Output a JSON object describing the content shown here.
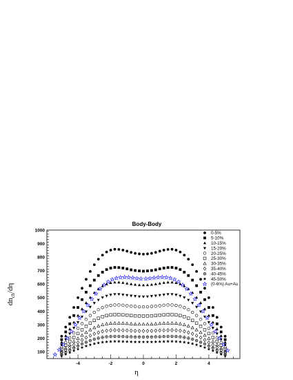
{
  "chart_data": {
    "type": "scatter",
    "title": "Body-Body",
    "xlabel": "η",
    "ylabel_main": "dn",
    "ylabel_sub": "ch",
    "ylabel_tail": "/dη",
    "xlim": [
      -5.9,
      5.9
    ],
    "ylim": [
      50,
      1000
    ],
    "xticks": [
      -4,
      -2,
      0,
      2,
      4
    ],
    "yticks": [
      100,
      200,
      300,
      400,
      500,
      600,
      700,
      800,
      900,
      1000
    ],
    "legend_position": "top-right",
    "grid": false,
    "x": [
      -5.0,
      -4.75,
      -4.5,
      -4.25,
      -4.0,
      -3.75,
      -3.5,
      -3.25,
      -3.0,
      -2.75,
      -2.5,
      -2.25,
      -2.0,
      -1.75,
      -1.5,
      -1.25,
      -1.0,
      -0.75,
      -0.5,
      -0.25,
      0.0,
      0.25,
      0.5,
      0.75,
      1.0,
      1.25,
      1.5,
      1.75,
      2.0,
      2.25,
      2.5,
      2.75,
      3.0,
      3.25,
      3.5,
      3.75,
      4.0,
      4.25,
      4.5,
      4.75,
      5.0
    ],
    "series": [
      {
        "name": "0-5%",
        "marker": "circle-filled",
        "values": [
          215,
          283,
          355,
          428,
          500,
          570,
          636,
          694,
          744,
          785,
          815,
          838,
          852,
          858,
          857,
          852,
          844,
          835,
          828,
          824,
          822,
          824,
          828,
          835,
          844,
          852,
          857,
          858,
          852,
          838,
          815,
          785,
          744,
          694,
          636,
          570,
          500,
          428,
          355,
          283,
          215
        ]
      },
      {
        "name": "5-10%",
        "marker": "square-filled",
        "values": [
          190,
          247,
          307,
          368,
          428,
          486,
          541,
          589,
          630,
          664,
          689,
          708,
          719,
          724,
          723,
          719,
          713,
          706,
          701,
          698,
          696,
          698,
          701,
          706,
          713,
          719,
          723,
          724,
          719,
          708,
          689,
          664,
          630,
          589,
          541,
          486,
          428,
          368,
          307,
          247,
          190
        ]
      },
      {
        "name": "10-15%",
        "marker": "triangle-up-filled",
        "values": [
          170,
          218,
          268,
          318,
          368,
          417,
          462,
          502,
          537,
          565,
          586,
          601,
          610,
          614,
          614,
          611,
          606,
          601,
          597,
          594,
          593,
          594,
          597,
          601,
          606,
          611,
          614,
          614,
          610,
          601,
          586,
          565,
          537,
          502,
          462,
          417,
          368,
          318,
          268,
          218,
          170
        ]
      },
      {
        "name": "15-20%",
        "marker": "triangle-down-filled",
        "values": [
          150,
          191,
          234,
          276,
          318,
          359,
          397,
          431,
          460,
          483,
          501,
          513,
          521,
          525,
          525,
          522,
          518,
          514,
          511,
          508,
          507,
          508,
          511,
          514,
          518,
          522,
          525,
          525,
          521,
          513,
          501,
          483,
          460,
          431,
          397,
          359,
          318,
          276,
          234,
          191,
          150
        ]
      },
      {
        "name": "20-25%",
        "marker": "circle-open",
        "values": [
          135,
          169,
          204,
          239,
          274,
          308,
          340,
          368,
          392,
          412,
          427,
          437,
          443,
          446,
          446,
          444,
          441,
          437,
          435,
          433,
          432,
          433,
          435,
          437,
          441,
          444,
          446,
          446,
          443,
          437,
          427,
          412,
          392,
          368,
          340,
          308,
          274,
          239,
          204,
          169,
          135
        ]
      },
      {
        "name": "25-30%",
        "marker": "square-open",
        "values": [
          120,
          148,
          177,
          206,
          235,
          263,
          289,
          312,
          332,
          348,
          360,
          368,
          373,
          375,
          375,
          373,
          371,
          368,
          366,
          365,
          364,
          365,
          366,
          368,
          371,
          373,
          375,
          375,
          373,
          368,
          360,
          348,
          332,
          312,
          289,
          263,
          235,
          206,
          177,
          148,
          120
        ]
      },
      {
        "name": "30-35%",
        "marker": "triangle-up-open",
        "values": [
          105,
          128,
          152,
          176,
          199,
          222,
          243,
          262,
          278,
          291,
          300,
          307,
          310,
          312,
          312,
          311,
          309,
          307,
          305,
          304,
          304,
          304,
          305,
          307,
          309,
          311,
          312,
          312,
          310,
          307,
          300,
          291,
          278,
          262,
          243,
          222,
          199,
          176,
          152,
          128,
          105
        ]
      },
      {
        "name": "35-40%",
        "marker": "diamond-open",
        "values": [
          92,
          112,
          131,
          150,
          169,
          188,
          205,
          220,
          233,
          243,
          251,
          256,
          259,
          260,
          260,
          259,
          258,
          256,
          255,
          254,
          254,
          254,
          255,
          256,
          258,
          259,
          260,
          260,
          259,
          256,
          251,
          243,
          233,
          220,
          205,
          188,
          169,
          150,
          131,
          112,
          92
        ]
      },
      {
        "name": "40-45%",
        "marker": "cross-circle-open",
        "values": [
          80,
          96,
          112,
          128,
          143,
          158,
          171,
          183,
          193,
          201,
          207,
          211,
          213,
          214,
          214,
          213,
          212,
          211,
          210,
          210,
          209,
          210,
          210,
          211,
          212,
          213,
          214,
          214,
          213,
          211,
          207,
          201,
          193,
          183,
          171,
          158,
          143,
          128,
          112,
          96,
          80
        ]
      },
      {
        "name": "45-50%",
        "marker": "star-filled",
        "values": [
          70,
          82,
          95,
          108,
          120,
          132,
          143,
          152,
          160,
          166,
          171,
          174,
          176,
          177,
          177,
          176,
          175,
          174,
          173,
          173,
          173,
          173,
          173,
          174,
          175,
          176,
          177,
          177,
          176,
          174,
          171,
          166,
          160,
          152,
          143,
          132,
          120,
          108,
          95,
          82,
          70
        ]
      },
      {
        "name": "(0-6%) Au+Au",
        "marker": "star-open",
        "color": "#1a1aff",
        "x": [
          -5.4,
          -5.15,
          -4.9,
          -4.65,
          -4.4,
          -4.15,
          -3.9,
          -3.65,
          -3.4,
          -3.15,
          -2.9,
          -2.65,
          -2.4,
          -2.15,
          -1.9,
          -1.65,
          -1.4,
          -1.15,
          -0.9,
          -0.65,
          -0.4,
          -0.15,
          0.15,
          0.4,
          0.65,
          0.9,
          1.15,
          1.4,
          1.65,
          1.9,
          2.15,
          2.4,
          2.65,
          2.9,
          3.15,
          3.4,
          3.65,
          3.9,
          4.15,
          4.4,
          4.65,
          4.9,
          5.15
        ],
        "values": [
          80,
          115,
          155,
          200,
          250,
          300,
          350,
          400,
          445,
          490,
          530,
          565,
          595,
          618,
          635,
          645,
          650,
          652,
          650,
          647,
          643,
          640,
          640,
          643,
          647,
          650,
          652,
          650,
          645,
          635,
          618,
          595,
          565,
          530,
          490,
          445,
          400,
          350,
          300,
          250,
          200,
          155,
          110
        ]
      }
    ]
  }
}
